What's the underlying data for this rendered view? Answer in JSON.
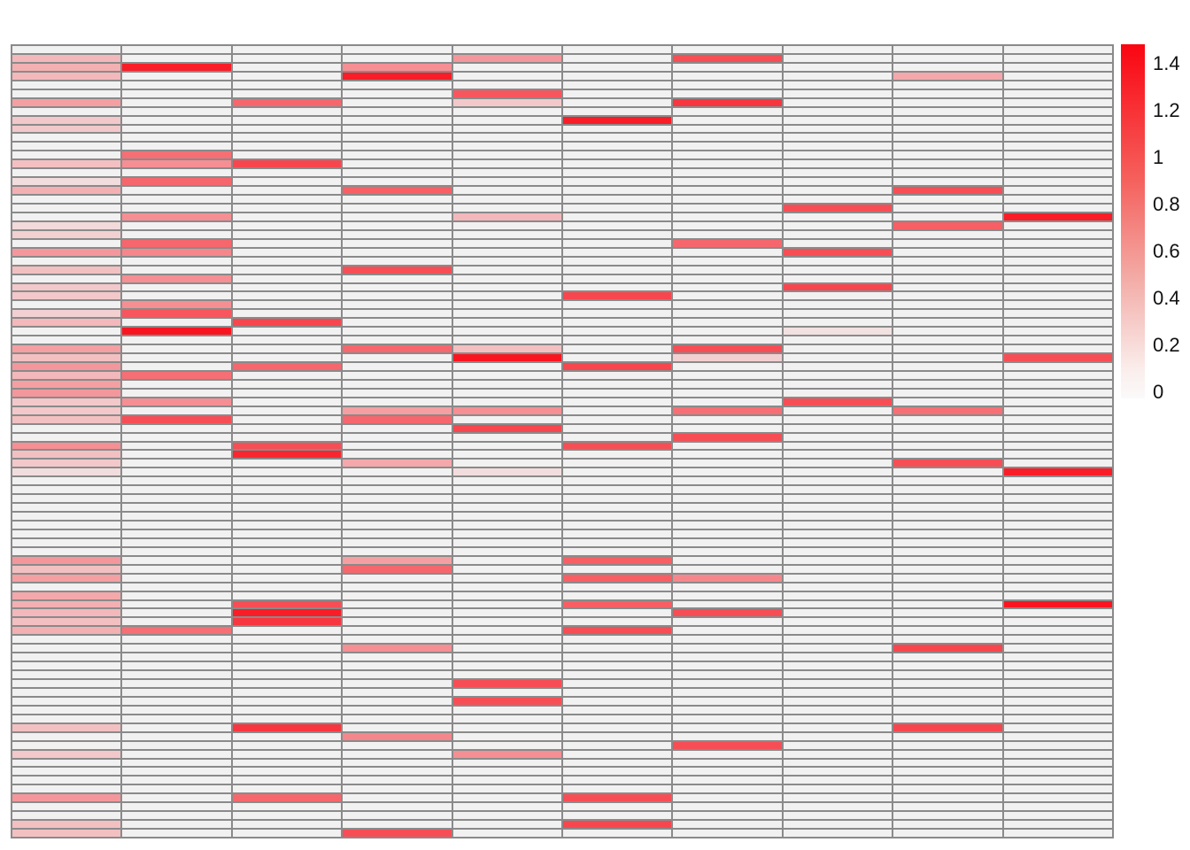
{
  "figure": {
    "kind": "heatmap-with-colorbar",
    "background_color": "#ffffff",
    "grid_line_color": "#8a8a8a",
    "zero_cell_color": "#f1f1f1",
    "max_color": "#fa0511"
  },
  "colorbar": {
    "orientation": "vertical",
    "top_value": 1.45,
    "bottom_value": 0,
    "tick_labels": [
      "1.4",
      "1.2",
      "1",
      "0.8",
      "0.6",
      "0.4",
      "0.2",
      "0"
    ]
  },
  "chart_data": {
    "type": "heatmap",
    "n_rows": 90,
    "n_cols": 10,
    "value_range": [
      0,
      1.45
    ],
    "colormap": {
      "low": "#f1f1f1",
      "high": "#fa0511",
      "scale_max": 1.45
    },
    "legend_position": "right",
    "grid": true,
    "values": [
      [
        0,
        0,
        0,
        0,
        0,
        0,
        0,
        0,
        0,
        0
      ],
      [
        0.35,
        0,
        0,
        0,
        0.55,
        0,
        1.0,
        0,
        0,
        0
      ],
      [
        0.4,
        1.3,
        0,
        0.6,
        0,
        0,
        0,
        0,
        0,
        0
      ],
      [
        0.35,
        0,
        0,
        1.3,
        0,
        0,
        0,
        0,
        0.45,
        0
      ],
      [
        0,
        0,
        0,
        0,
        0,
        0,
        0,
        0,
        0,
        0
      ],
      [
        0,
        0,
        0,
        0,
        0.95,
        0,
        0,
        0,
        0,
        0
      ],
      [
        0.5,
        0,
        0.85,
        0,
        0.25,
        0,
        1.15,
        0,
        0,
        0
      ],
      [
        0,
        0,
        0,
        0,
        0,
        0,
        0,
        0,
        0,
        0
      ],
      [
        0.25,
        0,
        0,
        0,
        0,
        1.3,
        0,
        0,
        0,
        0
      ],
      [
        0.25,
        0,
        0,
        0,
        0,
        0,
        0,
        0,
        0,
        0
      ],
      [
        0,
        0,
        0,
        0,
        0,
        0,
        0,
        0,
        0,
        0
      ],
      [
        0,
        0,
        0,
        0,
        0,
        0,
        0,
        0,
        0,
        0
      ],
      [
        0,
        0.8,
        0,
        0,
        0,
        0,
        0,
        0,
        0,
        0
      ],
      [
        0.3,
        0.6,
        1.05,
        0,
        0,
        0,
        0,
        0,
        0,
        0
      ],
      [
        0,
        0,
        0,
        0,
        0,
        0,
        0,
        0,
        0,
        0
      ],
      [
        0.12,
        0.85,
        0,
        0,
        0,
        0,
        0,
        0,
        0,
        0
      ],
      [
        0.4,
        0,
        0,
        0.9,
        0,
        0,
        0,
        0,
        1.0,
        0
      ],
      [
        0,
        0,
        0,
        0,
        0,
        0,
        0,
        0,
        0,
        0
      ],
      [
        0,
        0,
        0,
        0,
        0,
        0,
        0,
        1.0,
        0,
        0
      ],
      [
        0,
        0.6,
        0,
        0,
        0.35,
        0,
        0,
        0,
        0,
        1.3
      ],
      [
        0.15,
        0,
        0,
        0,
        0,
        0,
        0,
        0,
        0.9,
        0
      ],
      [
        0.2,
        0,
        0,
        0,
        0,
        0,
        0,
        0,
        0,
        0
      ],
      [
        0,
        0.85,
        0,
        0,
        0,
        0,
        0.85,
        0,
        0,
        0
      ],
      [
        0.55,
        0.65,
        0,
        0,
        0,
        0,
        0,
        1.0,
        0,
        0
      ],
      [
        0,
        0,
        0,
        0,
        0,
        0,
        0,
        0,
        0,
        0
      ],
      [
        0.3,
        0,
        0,
        1.0,
        0,
        0,
        0,
        0,
        0,
        0
      ],
      [
        0,
        0.6,
        0,
        0,
        0,
        0,
        0,
        0,
        0,
        0
      ],
      [
        0.25,
        0,
        0,
        0,
        0,
        0,
        0,
        1.05,
        0,
        0
      ],
      [
        0.25,
        0,
        0,
        0,
        0,
        1.05,
        0,
        0,
        0,
        0
      ],
      [
        0,
        0.6,
        0,
        0,
        0,
        0,
        0,
        0,
        0,
        0
      ],
      [
        0.2,
        0.95,
        0,
        0,
        0,
        0,
        0,
        0,
        0,
        0
      ],
      [
        0.35,
        0,
        1.05,
        0,
        0,
        0,
        0,
        0,
        0,
        0
      ],
      [
        0,
        1.35,
        0,
        0,
        0,
        0,
        0,
        0.1,
        0,
        0
      ],
      [
        0,
        0,
        0,
        0,
        0,
        0,
        0,
        0,
        0,
        0
      ],
      [
        0.5,
        0,
        0,
        0.85,
        0.3,
        0,
        1.0,
        0,
        0,
        0
      ],
      [
        0.3,
        0,
        0,
        0,
        1.35,
        0,
        0.2,
        0,
        0,
        1.0
      ],
      [
        0.55,
        0,
        0.85,
        0,
        0,
        1.05,
        0,
        0,
        0,
        0
      ],
      [
        0.35,
        0.8,
        0,
        0,
        0,
        0,
        0,
        0,
        0,
        0
      ],
      [
        0.5,
        0,
        0,
        0,
        0,
        0,
        0,
        0,
        0,
        0
      ],
      [
        0.55,
        0,
        0,
        0,
        0,
        0,
        0,
        0,
        0,
        0
      ],
      [
        0.25,
        0.6,
        0,
        0,
        0,
        0,
        0,
        1.0,
        0,
        0
      ],
      [
        0.25,
        0,
        0,
        0.5,
        0.6,
        0,
        0.8,
        0,
        0.8,
        0
      ],
      [
        0.3,
        1.0,
        0,
        0.85,
        0,
        0,
        0,
        0,
        0,
        0
      ],
      [
        0,
        0,
        0,
        0,
        1.05,
        0,
        0,
        0,
        0,
        0
      ],
      [
        0,
        0,
        0,
        0,
        0,
        0,
        1.0,
        0,
        0,
        0
      ],
      [
        0.6,
        0,
        1.0,
        0,
        0,
        1.0,
        0,
        0,
        0,
        0
      ],
      [
        0.3,
        0,
        1.25,
        0,
        0,
        0,
        0,
        0,
        0,
        0
      ],
      [
        0.25,
        0,
        0,
        0.45,
        0,
        0,
        0,
        0,
        1.0,
        0
      ],
      [
        0.12,
        0,
        0,
        0,
        0.12,
        0,
        0,
        0,
        0,
        1.3
      ],
      [
        0,
        0,
        0,
        0,
        0,
        0,
        0,
        0,
        0,
        0
      ],
      [
        0,
        0,
        0,
        0,
        0,
        0,
        0,
        0,
        0,
        0
      ],
      [
        0,
        0,
        0,
        0,
        0,
        0,
        0,
        0,
        0,
        0
      ],
      [
        0,
        0,
        0,
        0,
        0,
        0,
        0,
        0,
        0,
        0
      ],
      [
        0,
        0,
        0,
        0,
        0,
        0,
        0,
        0,
        0,
        0
      ],
      [
        0,
        0,
        0,
        0,
        0,
        0,
        0,
        0,
        0,
        0
      ],
      [
        0,
        0,
        0,
        0,
        0,
        0,
        0,
        0,
        0,
        0
      ],
      [
        0,
        0,
        0,
        0,
        0,
        0,
        0,
        0,
        0,
        0
      ],
      [
        0,
        0,
        0,
        0,
        0,
        0,
        0,
        0,
        0,
        0
      ],
      [
        0.55,
        0,
        0,
        0.5,
        0,
        0.9,
        0,
        0,
        0,
        0
      ],
      [
        0.3,
        0,
        0,
        0.85,
        0,
        0,
        0,
        0,
        0,
        0
      ],
      [
        0.5,
        0,
        0,
        0,
        0,
        0.9,
        0.65,
        0,
        0,
        0
      ],
      [
        0,
        0,
        0,
        0,
        0,
        0,
        0,
        0,
        0,
        0
      ],
      [
        0.45,
        0,
        0,
        0,
        0,
        0,
        0,
        0,
        0,
        0
      ],
      [
        0.4,
        0,
        1.0,
        0,
        0,
        0.9,
        0,
        0,
        0,
        1.35
      ],
      [
        0.35,
        0,
        1.3,
        0,
        0,
        0,
        1.0,
        0,
        0,
        0
      ],
      [
        0.3,
        0,
        1.15,
        0,
        0,
        0,
        0,
        0,
        0,
        0
      ],
      [
        0.4,
        0.8,
        0,
        0,
        0,
        1.0,
        0,
        0,
        0,
        0
      ],
      [
        0,
        0,
        0,
        0,
        0,
        0,
        0,
        0,
        0,
        0
      ],
      [
        0,
        0,
        0,
        0.6,
        0,
        0,
        0,
        0,
        1.05,
        0
      ],
      [
        0,
        0,
        0,
        0,
        0,
        0,
        0,
        0,
        0,
        0
      ],
      [
        0,
        0,
        0,
        0,
        0,
        0,
        0,
        0,
        0,
        0
      ],
      [
        0,
        0,
        0,
        0,
        0,
        0,
        0,
        0,
        0,
        0
      ],
      [
        0,
        0,
        0,
        0,
        1.0,
        0,
        0,
        0,
        0,
        0
      ],
      [
        0,
        0,
        0,
        0,
        0,
        0,
        0,
        0,
        0,
        0
      ],
      [
        0,
        0,
        0,
        0,
        1.0,
        0,
        0,
        0,
        0,
        0
      ],
      [
        0,
        0,
        0,
        0,
        0,
        0,
        0,
        0,
        0,
        0
      ],
      [
        0,
        0,
        0,
        0,
        0,
        0,
        0,
        0,
        0,
        0
      ],
      [
        0.3,
        0,
        1.15,
        0,
        0,
        0,
        0,
        0,
        1.05,
        0
      ],
      [
        0,
        0,
        0,
        0.65,
        0,
        0,
        0,
        0,
        0,
        0
      ],
      [
        0,
        0,
        0,
        0,
        0,
        0,
        1.0,
        0,
        0,
        0
      ],
      [
        0.25,
        0,
        0,
        0,
        0.6,
        0,
        0,
        0,
        0,
        0
      ],
      [
        0,
        0,
        0,
        0,
        0,
        0,
        0,
        0,
        0,
        0
      ],
      [
        0,
        0,
        0,
        0,
        0,
        0,
        0,
        0,
        0,
        0
      ],
      [
        0,
        0,
        0,
        0,
        0,
        0,
        0,
        0,
        0,
        0
      ],
      [
        0,
        0,
        0,
        0,
        0,
        0,
        0,
        0,
        0,
        0
      ],
      [
        0.55,
        0,
        0.85,
        0,
        0,
        1.0,
        0,
        0,
        0,
        0
      ],
      [
        0,
        0,
        0,
        0,
        0,
        0,
        0,
        0,
        0,
        0
      ],
      [
        0,
        0,
        0,
        0,
        0,
        0,
        0,
        0,
        0,
        0
      ],
      [
        0.3,
        0,
        0,
        0,
        0,
        1.05,
        0,
        0,
        0,
        0
      ],
      [
        0.3,
        0,
        0,
        1.0,
        0,
        0,
        0,
        0,
        0,
        0
      ]
    ]
  },
  "colorbar_layout": {
    "tick_top_y": 60,
    "tick_spacing": 53
  }
}
